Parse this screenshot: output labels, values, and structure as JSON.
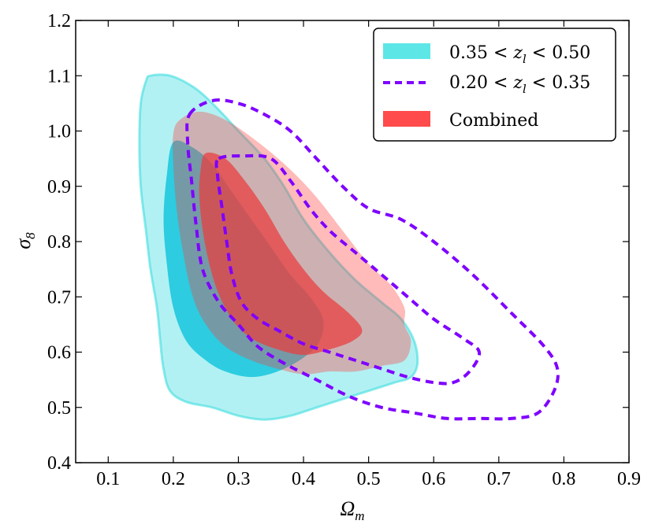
{
  "chart_data": {
    "type": "contour",
    "xlabel": "Ωm",
    "ylabel": "σ8",
    "xlim": [
      0.05,
      0.9
    ],
    "ylim": [
      0.4,
      1.2
    ],
    "xticks": [
      "0.1",
      "0.2",
      "0.3",
      "0.4",
      "0.5",
      "0.6",
      "0.7",
      "0.8",
      "0.9"
    ],
    "yticks": [
      "0.4",
      "0.5",
      "0.6",
      "0.7",
      "0.8",
      "0.9",
      "1.0",
      "1.1",
      "1.2"
    ],
    "grid": false,
    "legend_position": "top-right",
    "legend": [
      {
        "label": "0.35 < z_l < 0.50",
        "style": "filled",
        "color": "#3fdde0"
      },
      {
        "label": "0.20 < z_l < 0.35",
        "style": "dashed",
        "color": "#7f00ff"
      },
      {
        "label": "Combined",
        "style": "filled",
        "color": "#ff3a3a"
      }
    ],
    "series": [
      {
        "name": "0.35 < z_l < 0.50",
        "level": "outer",
        "color": "#3fdde0",
        "opacity": 0.4,
        "stroke": "#3fdde0",
        "points": [
          [
            0.165,
            1.1
          ],
          [
            0.195,
            1.1
          ],
          [
            0.23,
            1.08
          ],
          [
            0.26,
            1.05
          ],
          [
            0.3,
            1.0
          ],
          [
            0.34,
            0.95
          ],
          [
            0.37,
            0.9
          ],
          [
            0.4,
            0.84
          ],
          [
            0.44,
            0.78
          ],
          [
            0.48,
            0.73
          ],
          [
            0.52,
            0.69
          ],
          [
            0.55,
            0.66
          ],
          [
            0.57,
            0.62
          ],
          [
            0.575,
            0.58
          ],
          [
            0.565,
            0.555
          ],
          [
            0.54,
            0.545
          ],
          [
            0.5,
            0.53
          ],
          [
            0.46,
            0.515
          ],
          [
            0.42,
            0.5
          ],
          [
            0.38,
            0.485
          ],
          [
            0.34,
            0.478
          ],
          [
            0.3,
            0.485
          ],
          [
            0.26,
            0.5
          ],
          [
            0.22,
            0.51
          ],
          [
            0.195,
            0.53
          ],
          [
            0.185,
            0.57
          ],
          [
            0.18,
            0.62
          ],
          [
            0.175,
            0.68
          ],
          [
            0.165,
            0.75
          ],
          [
            0.158,
            0.82
          ],
          [
            0.15,
            0.9
          ],
          [
            0.148,
            0.98
          ],
          [
            0.15,
            1.05
          ],
          [
            0.158,
            1.09
          ]
        ]
      },
      {
        "name": "0.35 < z_l < 0.50",
        "level": "inner",
        "color": "#1ec8de",
        "opacity": 0.9,
        "points": [
          [
            0.2,
            0.98
          ],
          [
            0.23,
            0.97
          ],
          [
            0.26,
            0.94
          ],
          [
            0.29,
            0.89
          ],
          [
            0.32,
            0.84
          ],
          [
            0.35,
            0.79
          ],
          [
            0.38,
            0.74
          ],
          [
            0.41,
            0.7
          ],
          [
            0.43,
            0.66
          ],
          [
            0.425,
            0.62
          ],
          [
            0.4,
            0.59
          ],
          [
            0.36,
            0.565
          ],
          [
            0.32,
            0.555
          ],
          [
            0.28,
            0.565
          ],
          [
            0.25,
            0.585
          ],
          [
            0.22,
            0.62
          ],
          [
            0.2,
            0.68
          ],
          [
            0.19,
            0.76
          ],
          [
            0.185,
            0.84
          ],
          [
            0.19,
            0.92
          ]
        ]
      },
      {
        "name": "Combined",
        "level": "outer",
        "color": "#ff3a3a",
        "opacity": 0.35,
        "points": [
          [
            0.21,
            1.02
          ],
          [
            0.24,
            1.035
          ],
          [
            0.28,
            1.02
          ],
          [
            0.33,
            0.98
          ],
          [
            0.38,
            0.93
          ],
          [
            0.42,
            0.88
          ],
          [
            0.46,
            0.82
          ],
          [
            0.5,
            0.76
          ],
          [
            0.535,
            0.72
          ],
          [
            0.555,
            0.68
          ],
          [
            0.555,
            0.65
          ],
          [
            0.565,
            0.62
          ],
          [
            0.555,
            0.585
          ],
          [
            0.52,
            0.575
          ],
          [
            0.48,
            0.565
          ],
          [
            0.44,
            0.565
          ],
          [
            0.4,
            0.56
          ],
          [
            0.36,
            0.57
          ],
          [
            0.32,
            0.585
          ],
          [
            0.28,
            0.61
          ],
          [
            0.25,
            0.65
          ],
          [
            0.23,
            0.7
          ],
          [
            0.215,
            0.78
          ],
          [
            0.205,
            0.86
          ],
          [
            0.2,
            0.94
          ],
          [
            0.2,
            0.995
          ]
        ]
      },
      {
        "name": "Combined",
        "level": "inner",
        "color": "#e84040",
        "opacity": 0.75,
        "points": [
          [
            0.25,
            0.96
          ],
          [
            0.28,
            0.95
          ],
          [
            0.31,
            0.91
          ],
          [
            0.34,
            0.86
          ],
          [
            0.37,
            0.8
          ],
          [
            0.4,
            0.75
          ],
          [
            0.43,
            0.71
          ],
          [
            0.47,
            0.67
          ],
          [
            0.49,
            0.64
          ],
          [
            0.475,
            0.62
          ],
          [
            0.44,
            0.605
          ],
          [
            0.4,
            0.595
          ],
          [
            0.36,
            0.605
          ],
          [
            0.32,
            0.625
          ],
          [
            0.29,
            0.66
          ],
          [
            0.265,
            0.72
          ],
          [
            0.248,
            0.8
          ],
          [
            0.24,
            0.88
          ],
          [
            0.242,
            0.93
          ]
        ]
      },
      {
        "name": "0.20 < z_l < 0.35",
        "level": "outer",
        "color": "#7f00ff",
        "dashed": true,
        "points": [
          [
            0.225,
            1.03
          ],
          [
            0.26,
            1.055
          ],
          [
            0.3,
            1.05
          ],
          [
            0.34,
            1.03
          ],
          [
            0.38,
            1.0
          ],
          [
            0.42,
            0.95
          ],
          [
            0.46,
            0.9
          ],
          [
            0.5,
            0.86
          ],
          [
            0.55,
            0.84
          ],
          [
            0.6,
            0.8
          ],
          [
            0.66,
            0.74
          ],
          [
            0.72,
            0.67
          ],
          [
            0.77,
            0.61
          ],
          [
            0.79,
            0.57
          ],
          [
            0.785,
            0.53
          ],
          [
            0.76,
            0.49
          ],
          [
            0.72,
            0.48
          ],
          [
            0.67,
            0.48
          ],
          [
            0.62,
            0.48
          ],
          [
            0.57,
            0.49
          ],
          [
            0.52,
            0.5
          ],
          [
            0.47,
            0.52
          ],
          [
            0.42,
            0.55
          ],
          [
            0.37,
            0.58
          ],
          [
            0.33,
            0.61
          ],
          [
            0.3,
            0.65
          ],
          [
            0.27,
            0.69
          ],
          [
            0.245,
            0.75
          ],
          [
            0.235,
            0.83
          ],
          [
            0.228,
            0.91
          ],
          [
            0.222,
            0.98
          ]
        ]
      },
      {
        "name": "0.20 < z_l < 0.35",
        "level": "inner",
        "color": "#7f00ff",
        "dashed": true,
        "points": [
          [
            0.27,
            0.95
          ],
          [
            0.31,
            0.955
          ],
          [
            0.35,
            0.95
          ],
          [
            0.38,
            0.91
          ],
          [
            0.41,
            0.86
          ],
          [
            0.44,
            0.82
          ],
          [
            0.48,
            0.78
          ],
          [
            0.52,
            0.74
          ],
          [
            0.56,
            0.7
          ],
          [
            0.6,
            0.66
          ],
          [
            0.645,
            0.625
          ],
          [
            0.67,
            0.6
          ],
          [
            0.655,
            0.565
          ],
          [
            0.63,
            0.545
          ],
          [
            0.6,
            0.545
          ],
          [
            0.56,
            0.555
          ],
          [
            0.52,
            0.57
          ],
          [
            0.48,
            0.585
          ],
          [
            0.44,
            0.6
          ],
          [
            0.4,
            0.615
          ],
          [
            0.36,
            0.64
          ],
          [
            0.33,
            0.66
          ],
          [
            0.305,
            0.69
          ],
          [
            0.29,
            0.74
          ],
          [
            0.282,
            0.8
          ],
          [
            0.275,
            0.86
          ],
          [
            0.268,
            0.92
          ]
        ]
      }
    ]
  }
}
